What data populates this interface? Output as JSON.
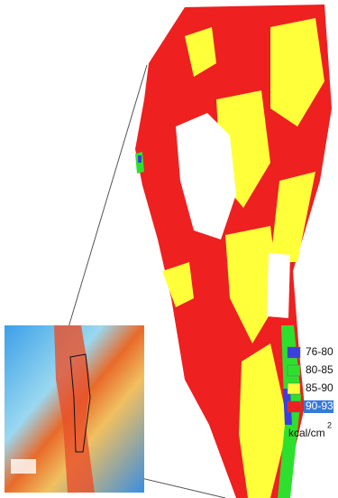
{
  "legend": {
    "items": [
      {
        "label": "76-80",
        "color": "#3b3fe0"
      },
      {
        "label": "80-85",
        "color": "#2ee02e"
      },
      {
        "label": "85-90",
        "color": "#ffff3a"
      },
      {
        "label": "90-93",
        "color": "#ee2020"
      }
    ],
    "unit": "kcal/cm",
    "unit_sup": "2"
  }
}
